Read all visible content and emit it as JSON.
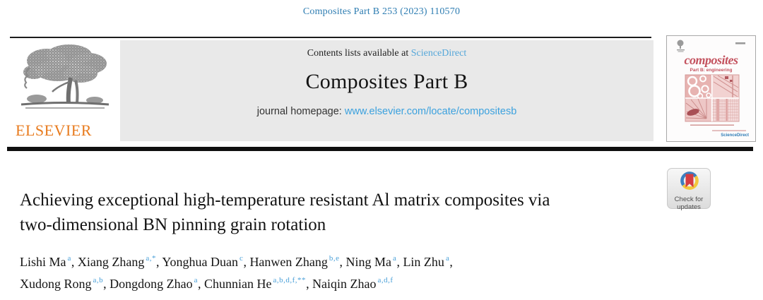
{
  "meta": {
    "citation": "Composites Part B 253 (2023) 110570"
  },
  "banner": {
    "contents_prefix": "Contents lists available at ",
    "sciencedirect_link": "ScienceDirect",
    "journal_title": "Composites Part B",
    "homepage_prefix": "journal homepage: ",
    "homepage_url": "www.elsevier.com/locate/compositesb",
    "elsevier_wordmark": "ELSEVIER"
  },
  "cover": {
    "title": "composites",
    "subtitle": "Part B: engineering",
    "footer_link": "ScienceDirect"
  },
  "badge": {
    "line1": "Check for",
    "line2": "updates"
  },
  "article": {
    "title_lines": [
      "Achieving exceptional high-temperature resistant Al matrix composites via",
      "two-dimensional BN pinning grain rotation"
    ],
    "author_lines": [
      [
        {
          "name": "Lishi Ma",
          "sup": "a",
          "trail": ", "
        },
        {
          "name": "Xiang Zhang",
          "sup": "a,*",
          "trail": ", "
        },
        {
          "name": "Yonghua Duan",
          "sup": "c",
          "trail": ", "
        },
        {
          "name": "Hanwen Zhang",
          "sup": "b,e",
          "trail": ", "
        },
        {
          "name": "Ning Ma",
          "sup": "a",
          "trail": ", "
        },
        {
          "name": "Lin Zhu",
          "sup": "a",
          "trail": ","
        }
      ],
      [
        {
          "name": "Xudong Rong",
          "sup": "a,b",
          "trail": ", "
        },
        {
          "name": "Dongdong Zhao",
          "sup": "a",
          "trail": ", "
        },
        {
          "name": "Chunnian He",
          "sup": "a,b,d,f,**",
          "trail": ", "
        },
        {
          "name": "Naiqin Zhao",
          "sup": "a,d,f",
          "trail": ""
        }
      ]
    ]
  },
  "colors": {
    "citation_blue": "#2e7db2",
    "sciencedirect_blue": "#55a7d9",
    "homepage_blue": "#3ba1de",
    "superscript_blue": "#4aa0d8",
    "elsevier_orange": "#e87b1e",
    "banner_gray": "#e9e9e9",
    "cover_pink": "#c4535f",
    "badge_red": "#d53b41",
    "badge_yellow": "#f2c73d",
    "badge_blue": "#3c7fc0"
  }
}
